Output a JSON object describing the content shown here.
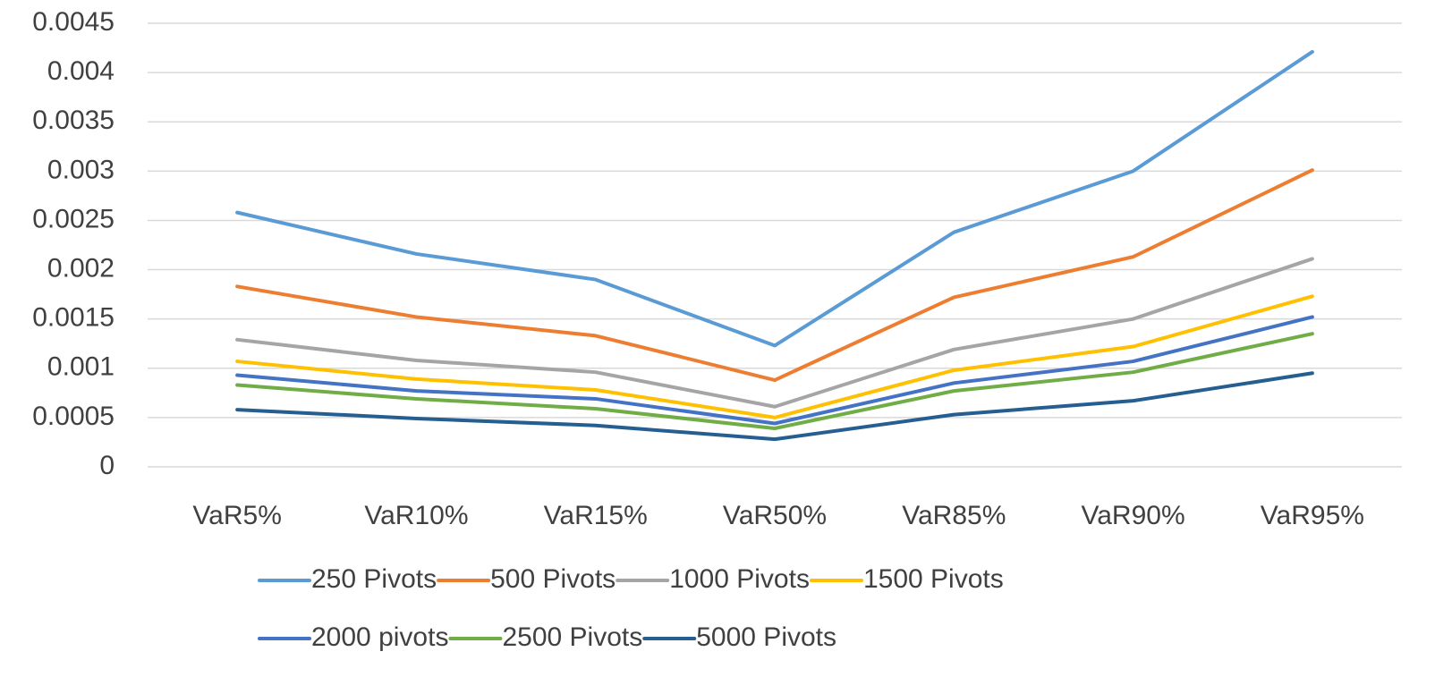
{
  "chart_data": {
    "type": "line",
    "categories": [
      "VaR5%",
      "VaR10%",
      "VaR15%",
      "VaR50%",
      "VaR85%",
      "VaR90%",
      "VaR95%"
    ],
    "series": [
      {
        "name": "250 Pivots",
        "color": "#5b9bd5",
        "values": [
          0.00258,
          0.00216,
          0.0019,
          0.00123,
          0.00238,
          0.003,
          0.00421
        ]
      },
      {
        "name": "500 Pivots",
        "color": "#ed7d31",
        "values": [
          0.00183,
          0.00152,
          0.00133,
          0.00088,
          0.00172,
          0.00213,
          0.00301
        ]
      },
      {
        "name": "1000 Pivots",
        "color": "#a5a5a5",
        "values": [
          0.00129,
          0.00108,
          0.00096,
          0.00061,
          0.00119,
          0.0015,
          0.00211
        ]
      },
      {
        "name": "1500 Pivots",
        "color": "#ffc000",
        "values": [
          0.00107,
          0.00089,
          0.00078,
          0.0005,
          0.00098,
          0.00122,
          0.00173
        ]
      },
      {
        "name": "2000 pivots",
        "color": "#4472c4",
        "values": [
          0.00093,
          0.00077,
          0.00069,
          0.00044,
          0.00085,
          0.00107,
          0.00152
        ]
      },
      {
        "name": "2500 Pivots",
        "color": "#70ad47",
        "values": [
          0.00083,
          0.00069,
          0.00059,
          0.00039,
          0.00077,
          0.00096,
          0.00135
        ]
      },
      {
        "name": "5000 Pivots",
        "color": "#255e91",
        "values": [
          0.00058,
          0.00049,
          0.00042,
          0.00028,
          0.00053,
          0.00067,
          0.00095
        ]
      }
    ],
    "ylim": [
      0,
      0.0045
    ],
    "yticks": [
      0,
      0.0005,
      0.001,
      0.0015,
      0.002,
      0.0025,
      0.003,
      0.0035,
      0.004,
      0.0045
    ],
    "grid": true
  }
}
